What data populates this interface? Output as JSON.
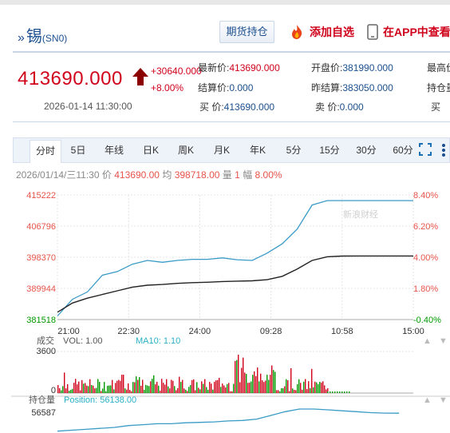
{
  "header": {
    "symbol_mark": "»",
    "name": "锡",
    "code": "(SN0)",
    "position_button": "期货持仓",
    "favorite": "添加自选",
    "app": "在APP中查看"
  },
  "quote": {
    "price": "413690.000",
    "change": "+30640.000",
    "change_pct": "+8.00%",
    "datetime": "2026-01-14 11:30:00",
    "fields": [
      {
        "key": "最新价:",
        "value": "413690.000",
        "color": "red"
      },
      {
        "key": "结算价:",
        "value": "0.000",
        "color": "blue"
      },
      {
        "key": "买  价:",
        "value": "413690.000",
        "color": "blue"
      },
      {
        "key": "开盘价:",
        "value": "381990.000",
        "color": "blue"
      },
      {
        "key": "昨结算:",
        "value": "383050.000",
        "color": "blue"
      },
      {
        "key": "卖  价:",
        "value": "0.000",
        "color": "blue"
      },
      {
        "key": "最高价",
        "value": "",
        "color": "blue"
      },
      {
        "key": "持仓量",
        "value": "",
        "color": "blue"
      },
      {
        "key": "买  ",
        "value": "",
        "color": "blue"
      }
    ]
  },
  "tabs": [
    "分时",
    "5日",
    "年线",
    "日K",
    "周K",
    "月K",
    "年K",
    "5分",
    "15分",
    "30分",
    "60分"
  ],
  "active_tab": "分时",
  "info_bar": {
    "date": "2026/01/14/三11:30",
    "price_label": "价",
    "price": "413690.00",
    "avg_label": "均",
    "avg": "398718.00",
    "vol_label": "量",
    "vol": "1",
    "amp_label": "幅",
    "amp": "8.00%"
  },
  "watermark": "新浪财经",
  "colors": {
    "up": "#d0021b",
    "down": "#009900",
    "price_line": "#3a9bc7",
    "avg_line": "#222222",
    "accent": "#1b4f8f"
  },
  "volume_panel": {
    "title": "成交",
    "vol_label": "VOL: 1.00",
    "ma_label": "MA10: 1.10",
    "max_tick": "3600",
    "zero_tick": "0"
  },
  "position_panel": {
    "title": "持仓量",
    "label": "Position: 56138.00",
    "tick": "56587"
  },
  "chart_data": {
    "type": "line",
    "x_ticks": [
      "21:00",
      "22:30",
      "24:00",
      "09:28",
      "10:58",
      "15:00"
    ],
    "y_ticks_left": [
      "415222",
      "406796",
      "398370",
      "389944",
      "381518"
    ],
    "y_ticks_right": [
      "8.40%",
      "6.20%",
      "4.00%",
      "1.80%",
      "-0.40%"
    ],
    "ylim": [
      381518,
      415222
    ],
    "series": [
      {
        "name": "price",
        "x": [
          0,
          4,
          8,
          12,
          16,
          20,
          24,
          28,
          32,
          36,
          40,
          44,
          48,
          52,
          56,
          60,
          64,
          68,
          72,
          76,
          80,
          84,
          88,
          92,
          95
        ],
        "y": [
          382500,
          387000,
          389000,
          393500,
          394500,
          396500,
          397500,
          397000,
          397500,
          397800,
          397800,
          398200,
          397700,
          397500,
          399500,
          402000,
          406000,
          412500,
          413690,
          413690,
          413690,
          413690,
          413690,
          413690,
          413690
        ]
      },
      {
        "name": "average",
        "x": [
          0,
          4,
          8,
          12,
          16,
          20,
          24,
          28,
          32,
          36,
          40,
          44,
          48,
          52,
          56,
          60,
          64,
          68,
          72,
          76,
          80,
          84,
          88,
          92,
          95
        ],
        "y": [
          383500,
          386000,
          387300,
          388300,
          389300,
          390300,
          390800,
          391000,
          391300,
          391500,
          391600,
          391800,
          391900,
          392000,
          392300,
          393200,
          395200,
          397500,
          398500,
          398700,
          398718,
          398718,
          398718,
          398718,
          398718
        ]
      }
    ],
    "volume_ylim": [
      0,
      3600
    ],
    "position_ylim": [
      54000,
      56587
    ],
    "position_series": [
      54200,
      54300,
      54400,
      54500,
      54600,
      54800,
      54900,
      55000,
      55000,
      55100,
      55150,
      55200,
      55300,
      55350,
      55500,
      55900,
      56300,
      56587,
      56587,
      56500,
      56400,
      56300,
      56200,
      56150,
      56138
    ]
  }
}
